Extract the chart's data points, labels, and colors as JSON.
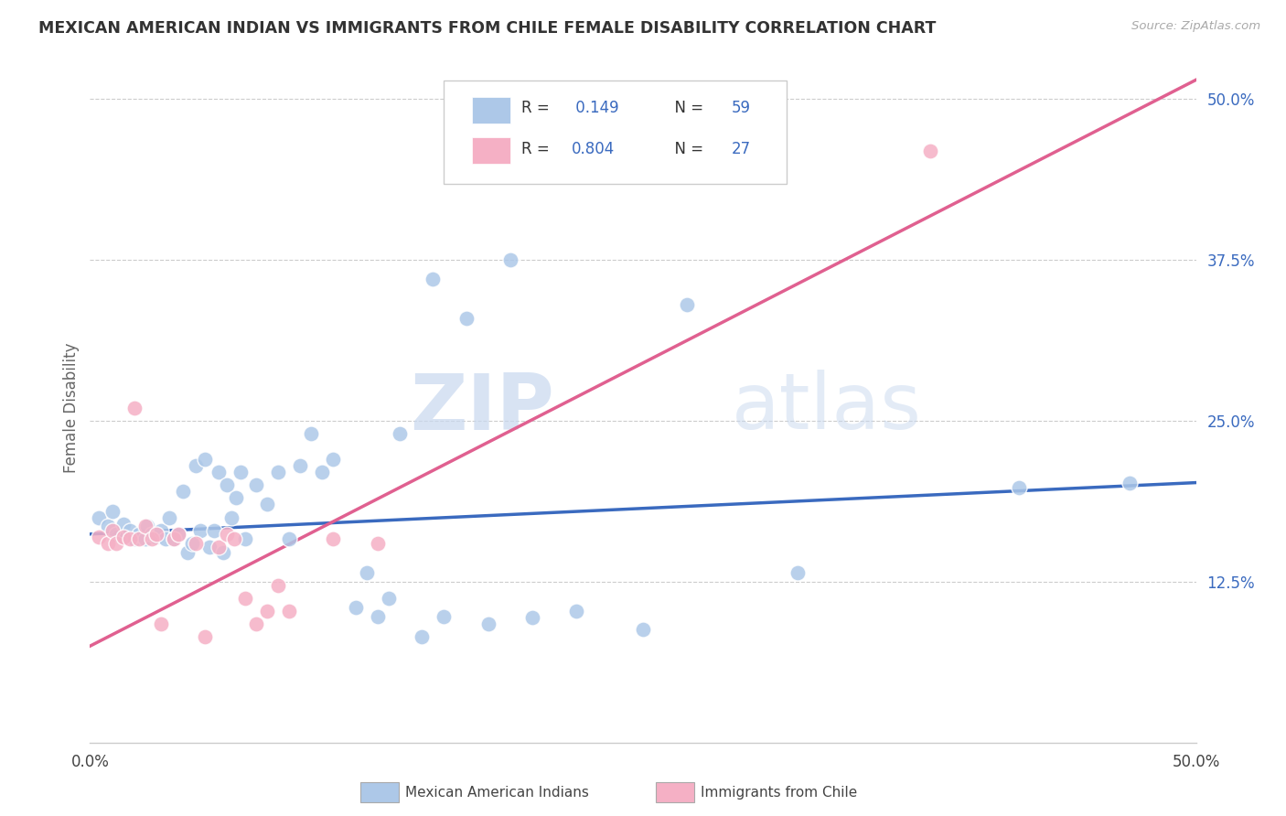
{
  "title": "MEXICAN AMERICAN INDIAN VS IMMIGRANTS FROM CHILE FEMALE DISABILITY CORRELATION CHART",
  "source": "Source: ZipAtlas.com",
  "ylabel": "Female Disability",
  "y_ticks": [
    0.125,
    0.25,
    0.375,
    0.5
  ],
  "y_tick_labels": [
    "12.5%",
    "25.0%",
    "37.5%",
    "50.0%"
  ],
  "x_ticks": [
    0.0,
    0.1,
    0.2,
    0.3,
    0.4,
    0.5
  ],
  "x_tick_labels": [
    "0.0%",
    "",
    "",
    "",
    "",
    "50.0%"
  ],
  "xlim": [
    0.0,
    0.5
  ],
  "ylim": [
    0.0,
    0.52
  ],
  "blue_R": "0.149",
  "blue_N": "59",
  "pink_R": "0.804",
  "pink_N": "27",
  "blue_color": "#adc8e8",
  "pink_color": "#f5b0c5",
  "blue_line_color": "#3a6abf",
  "pink_line_color": "#e06090",
  "R_N_color": "#3a6abf",
  "legend_label_blue": "Mexican American Indians",
  "legend_label_pink": "Immigrants from Chile",
  "watermark_zip": "ZIP",
  "watermark_atlas": "atlas",
  "blue_scatter_x": [
    0.004,
    0.008,
    0.01,
    0.012,
    0.015,
    0.016,
    0.018,
    0.02,
    0.022,
    0.025,
    0.026,
    0.028,
    0.03,
    0.032,
    0.034,
    0.036,
    0.038,
    0.04,
    0.042,
    0.044,
    0.046,
    0.048,
    0.05,
    0.052,
    0.054,
    0.056,
    0.058,
    0.06,
    0.062,
    0.064,
    0.066,
    0.068,
    0.07,
    0.075,
    0.08,
    0.085,
    0.09,
    0.095,
    0.1,
    0.105,
    0.11,
    0.12,
    0.125,
    0.13,
    0.135,
    0.14,
    0.15,
    0.155,
    0.16,
    0.17,
    0.18,
    0.19,
    0.2,
    0.22,
    0.25,
    0.27,
    0.32,
    0.42,
    0.47
  ],
  "blue_scatter_y": [
    0.175,
    0.168,
    0.18,
    0.162,
    0.17,
    0.16,
    0.165,
    0.158,
    0.162,
    0.158,
    0.168,
    0.162,
    0.16,
    0.165,
    0.158,
    0.175,
    0.158,
    0.162,
    0.195,
    0.148,
    0.155,
    0.215,
    0.165,
    0.22,
    0.152,
    0.165,
    0.21,
    0.148,
    0.2,
    0.175,
    0.19,
    0.21,
    0.158,
    0.2,
    0.185,
    0.21,
    0.158,
    0.215,
    0.24,
    0.21,
    0.22,
    0.105,
    0.132,
    0.098,
    0.112,
    0.24,
    0.082,
    0.36,
    0.098,
    0.33,
    0.092,
    0.375,
    0.097,
    0.102,
    0.088,
    0.34,
    0.132,
    0.198,
    0.202
  ],
  "pink_scatter_x": [
    0.004,
    0.008,
    0.01,
    0.012,
    0.015,
    0.018,
    0.02,
    0.022,
    0.025,
    0.028,
    0.03,
    0.032,
    0.038,
    0.04,
    0.048,
    0.052,
    0.058,
    0.062,
    0.065,
    0.07,
    0.075,
    0.08,
    0.085,
    0.09,
    0.11,
    0.13,
    0.38
  ],
  "pink_scatter_y": [
    0.16,
    0.155,
    0.165,
    0.155,
    0.16,
    0.158,
    0.26,
    0.158,
    0.168,
    0.158,
    0.162,
    0.092,
    0.158,
    0.162,
    0.155,
    0.082,
    0.152,
    0.162,
    0.158,
    0.112,
    0.092,
    0.102,
    0.122,
    0.102,
    0.158,
    0.155,
    0.46
  ],
  "blue_trend_x": [
    0.0,
    0.5
  ],
  "blue_trend_y": [
    0.162,
    0.202
  ],
  "pink_trend_x": [
    0.0,
    0.5
  ],
  "pink_trend_y": [
    0.075,
    0.515
  ]
}
